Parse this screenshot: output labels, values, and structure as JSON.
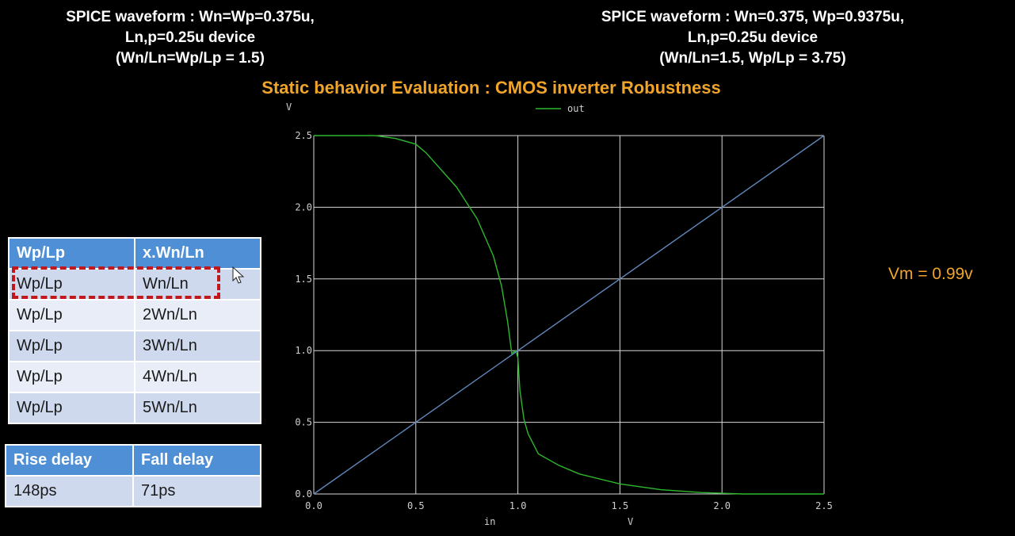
{
  "captions": {
    "left": [
      "SPICE waveform : Wn=Wp=0.375u,",
      "Ln,p=0.25u device",
      "(Wn/Ln=Wp/Lp = 1.5)"
    ],
    "right": [
      "SPICE waveform : Wn=0.375, Wp=0.9375u,",
      "Ln,p=0.25u device",
      "(Wn/Ln=1.5, Wp/Lp = 3.75)"
    ]
  },
  "title": "Static behavior Evaluation : CMOS inverter Robustness",
  "vm_label": "Vm = 0.99v",
  "ratio_table": {
    "headers": [
      "Wp/Lp",
      "x.Wn/Ln"
    ],
    "rows": [
      [
        "Wp/Lp",
        "Wn/Ln"
      ],
      [
        "Wp/Lp",
        "2Wn/Ln"
      ],
      [
        "Wp/Lp",
        "3Wn/Ln"
      ],
      [
        "Wp/Lp",
        "4Wn/Ln"
      ],
      [
        "Wp/Lp",
        "5Wn/Ln"
      ]
    ]
  },
  "delay_table": {
    "headers": [
      "Rise delay",
      "Fall delay"
    ],
    "rows": [
      [
        "148ps",
        "71ps"
      ]
    ]
  },
  "colors": {
    "accent": "#f0a52a",
    "table_header": "#4f8fd6",
    "highlight": "#c0181c",
    "out_curve": "#2db82d",
    "diagonal": "#5f87b8"
  },
  "chart_data": {
    "type": "line",
    "title": "",
    "legend_position": "top",
    "y_unit_label": "V",
    "xlabel": "in",
    "x_unit_label": "V",
    "xlim": [
      0,
      2.5
    ],
    "ylim": [
      0,
      2.5
    ],
    "x_ticks": [
      "0.0",
      "0.5",
      "1.0",
      "1.5",
      "2.0",
      "2.5"
    ],
    "y_ticks": [
      "0.0",
      "0.5",
      "1.0",
      "1.5",
      "2.0",
      "2.5"
    ],
    "grid": true,
    "series": [
      {
        "name": "out",
        "color": "#2db82d",
        "x": [
          0.0,
          0.3,
          0.4,
          0.5,
          0.55,
          0.6,
          0.7,
          0.8,
          0.88,
          0.92,
          0.95,
          0.97,
          0.99,
          1.0,
          1.01,
          1.03,
          1.05,
          1.1,
          1.2,
          1.3,
          1.5,
          1.7,
          1.9,
          2.0,
          2.1,
          2.5
        ],
        "y": [
          2.5,
          2.5,
          2.48,
          2.44,
          2.38,
          2.3,
          2.14,
          1.92,
          1.66,
          1.45,
          1.2,
          0.98,
          1.0,
          0.95,
          0.72,
          0.52,
          0.42,
          0.28,
          0.2,
          0.14,
          0.07,
          0.03,
          0.01,
          0.005,
          0.0,
          0.0
        ]
      },
      {
        "color": "#5f87b8",
        "x": [
          0.0,
          2.5
        ],
        "y": [
          0.0,
          2.5
        ]
      }
    ]
  }
}
